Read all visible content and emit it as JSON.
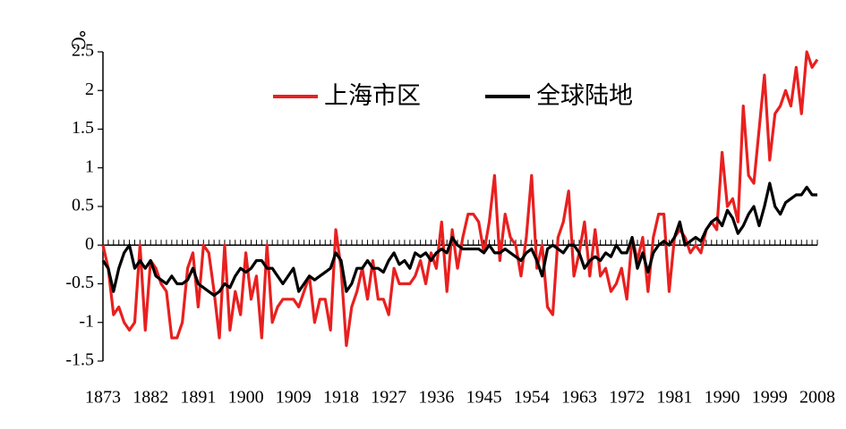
{
  "chart_data": {
    "type": "line",
    "y_label": "℃",
    "x": [
      1873,
      1874,
      1875,
      1876,
      1877,
      1878,
      1879,
      1880,
      1881,
      1882,
      1883,
      1884,
      1885,
      1886,
      1887,
      1888,
      1889,
      1890,
      1891,
      1892,
      1893,
      1894,
      1895,
      1896,
      1897,
      1898,
      1899,
      1900,
      1901,
      1902,
      1903,
      1904,
      1905,
      1906,
      1907,
      1908,
      1909,
      1910,
      1911,
      1912,
      1913,
      1914,
      1915,
      1916,
      1917,
      1918,
      1919,
      1920,
      1921,
      1922,
      1923,
      1924,
      1925,
      1926,
      1927,
      1928,
      1929,
      1930,
      1931,
      1932,
      1933,
      1934,
      1935,
      1936,
      1937,
      1938,
      1939,
      1940,
      1941,
      1942,
      1943,
      1944,
      1945,
      1946,
      1947,
      1948,
      1949,
      1950,
      1951,
      1952,
      1953,
      1954,
      1955,
      1956,
      1957,
      1958,
      1959,
      1960,
      1961,
      1962,
      1963,
      1964,
      1965,
      1966,
      1967,
      1968,
      1969,
      1970,
      1971,
      1972,
      1973,
      1974,
      1975,
      1976,
      1977,
      1978,
      1979,
      1980,
      1981,
      1982,
      1983,
      1984,
      1985,
      1986,
      1987,
      1988,
      1989,
      1990,
      1991,
      1992,
      1993,
      1994,
      1995,
      1996,
      1997,
      1998,
      1999,
      2000,
      2001,
      2002,
      2003,
      2004,
      2005,
      2006,
      2007,
      2008
    ],
    "series": [
      {
        "name": "上海市区",
        "color": "#e8201f",
        "values": [
          0.0,
          -0.3,
          -0.9,
          -0.8,
          -1.0,
          -1.1,
          -1.0,
          0.0,
          -1.1,
          -0.2,
          -0.3,
          -0.5,
          -0.6,
          -1.2,
          -1.2,
          -1.0,
          -0.3,
          -0.1,
          -0.8,
          0.0,
          -0.1,
          -0.6,
          -1.2,
          0.0,
          -1.1,
          -0.6,
          -0.9,
          -0.1,
          -0.7,
          -0.4,
          -1.2,
          0.0,
          -1.0,
          -0.8,
          -0.7,
          -0.7,
          -0.7,
          -0.8,
          -0.6,
          -0.4,
          -1.0,
          -0.7,
          -0.7,
          -1.1,
          0.2,
          -0.3,
          -1.3,
          -0.8,
          -0.6,
          -0.3,
          -0.7,
          -0.2,
          -0.7,
          -0.7,
          -0.9,
          -0.3,
          -0.5,
          -0.5,
          -0.5,
          -0.4,
          -0.2,
          -0.5,
          -0.1,
          -0.3,
          0.3,
          -0.6,
          0.2,
          -0.3,
          0.1,
          0.4,
          0.4,
          0.3,
          -0.1,
          0.3,
          0.9,
          -0.2,
          0.4,
          0.1,
          0.0,
          -0.4,
          0.1,
          0.9,
          -0.3,
          0.0,
          -0.8,
          -0.9,
          0.1,
          0.3,
          0.7,
          -0.4,
          -0.1,
          0.3,
          -0.4,
          0.2,
          -0.4,
          -0.3,
          -0.6,
          -0.5,
          -0.3,
          -0.7,
          0.1,
          -0.2,
          0.1,
          -0.6,
          0.1,
          0.4,
          0.4,
          -0.6,
          0.1,
          0.2,
          0.1,
          -0.1,
          0.0,
          -0.1,
          0.2,
          0.3,
          0.2,
          1.2,
          0.5,
          0.6,
          0.3,
          1.8,
          0.9,
          0.8,
          1.5,
          2.2,
          1.1,
          1.7,
          1.8,
          2.0,
          1.8,
          2.3,
          1.7,
          2.5,
          2.3,
          2.4
        ]
      },
      {
        "name": "全球陆地",
        "color": "#000000",
        "values": [
          -0.2,
          -0.3,
          -0.6,
          -0.3,
          -0.1,
          0.0,
          -0.3,
          -0.2,
          -0.3,
          -0.2,
          -0.4,
          -0.45,
          -0.5,
          -0.4,
          -0.5,
          -0.5,
          -0.45,
          -0.3,
          -0.5,
          -0.55,
          -0.6,
          -0.65,
          -0.6,
          -0.5,
          -0.55,
          -0.4,
          -0.3,
          -0.35,
          -0.3,
          -0.2,
          -0.2,
          -0.3,
          -0.3,
          -0.4,
          -0.5,
          -0.4,
          -0.3,
          -0.6,
          -0.5,
          -0.4,
          -0.45,
          -0.4,
          -0.35,
          -0.3,
          -0.1,
          -0.2,
          -0.6,
          -0.5,
          -0.3,
          -0.3,
          -0.2,
          -0.3,
          -0.3,
          -0.35,
          -0.2,
          -0.1,
          -0.25,
          -0.2,
          -0.3,
          -0.1,
          -0.15,
          -0.1,
          -0.2,
          -0.1,
          -0.05,
          -0.1,
          0.1,
          0.0,
          -0.05,
          -0.05,
          -0.05,
          -0.05,
          -0.1,
          0.0,
          -0.1,
          -0.1,
          -0.05,
          -0.1,
          -0.15,
          -0.2,
          -0.1,
          -0.05,
          -0.2,
          -0.4,
          -0.05,
          0.0,
          -0.05,
          -0.1,
          0.0,
          0.0,
          -0.1,
          -0.3,
          -0.2,
          -0.15,
          -0.2,
          -0.1,
          -0.15,
          0.0,
          -0.1,
          -0.1,
          0.1,
          -0.3,
          -0.1,
          -0.35,
          -0.1,
          0.0,
          0.05,
          0.0,
          0.1,
          0.3,
          0.0,
          0.05,
          0.1,
          0.05,
          0.2,
          0.3,
          0.35,
          0.25,
          0.45,
          0.35,
          0.15,
          0.25,
          0.4,
          0.5,
          0.25,
          0.5,
          0.8,
          0.5,
          0.4,
          0.55,
          0.6,
          0.65,
          0.65,
          0.75,
          0.65,
          0.65
        ]
      }
    ],
    "xlim": [
      1873,
      2008
    ],
    "xticks": [
      1873,
      1882,
      1891,
      1900,
      1909,
      1918,
      1927,
      1936,
      1945,
      1954,
      1963,
      1972,
      1981,
      1990,
      1999,
      2008
    ],
    "ylim": [
      -1.5,
      2.5
    ],
    "yticks": [
      2.5,
      2,
      1.5,
      1,
      0.5,
      0,
      -0.5,
      -1,
      -1.5
    ]
  }
}
